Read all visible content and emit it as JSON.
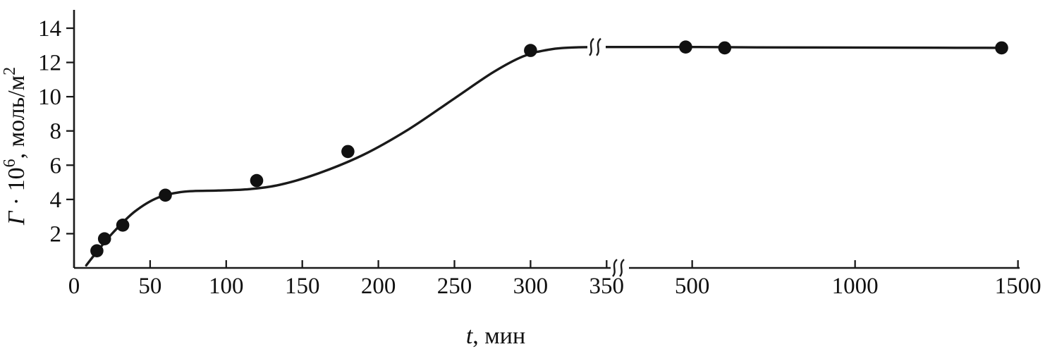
{
  "chart_data": {
    "type": "scatter",
    "title": "",
    "xlabel": {
      "italic": "t",
      "rest": ", мин"
    },
    "ylabel": {
      "gamma": "Γ",
      "mid": " · 10",
      "sup1": "6",
      "units": ", моль/м",
      "sup2": "2"
    },
    "x_axis": {
      "ticks_segment1": [
        0,
        50,
        100,
        150,
        200,
        250,
        300,
        350
      ],
      "ticks_segment2": [
        500,
        1000,
        1500
      ],
      "break_between": [
        365,
        420
      ]
    },
    "y_axis": {
      "ticks": [
        2,
        4,
        6,
        8,
        10,
        12,
        14
      ],
      "range": [
        0,
        14
      ]
    },
    "points": [
      [
        15,
        1.0
      ],
      [
        20,
        1.7
      ],
      [
        32,
        2.5
      ],
      [
        60,
        4.25
      ],
      [
        120,
        5.1
      ],
      [
        180,
        6.8
      ],
      [
        300,
        12.7
      ],
      [
        480,
        12.9
      ],
      [
        600,
        12.85
      ],
      [
        1450,
        12.85
      ]
    ],
    "curve": [
      [
        8,
        0.15
      ],
      [
        16,
        1.05
      ],
      [
        26,
        2.1
      ],
      [
        40,
        3.3
      ],
      [
        55,
        4.1
      ],
      [
        72,
        4.45
      ],
      [
        95,
        4.52
      ],
      [
        115,
        4.6
      ],
      [
        135,
        4.85
      ],
      [
        160,
        5.5
      ],
      [
        190,
        6.6
      ],
      [
        220,
        8.1
      ],
      [
        250,
        9.9
      ],
      [
        275,
        11.4
      ],
      [
        295,
        12.35
      ],
      [
        312,
        12.75
      ],
      [
        330,
        12.88
      ],
      [
        355,
        12.9
      ],
      [
        425,
        12.9
      ],
      [
        520,
        12.9
      ],
      [
        700,
        12.88
      ],
      [
        1000,
        12.87
      ],
      [
        1250,
        12.86
      ],
      [
        1460,
        12.85
      ]
    ],
    "colors": {
      "stroke": "#1a1a1a",
      "point": "#111111",
      "background": "#ffffff"
    }
  }
}
